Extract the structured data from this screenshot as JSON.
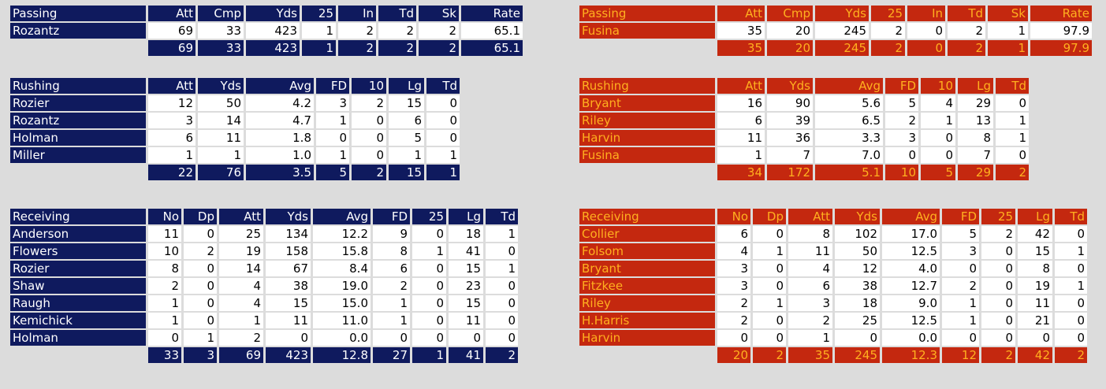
{
  "colors": {
    "team_a_bg": "#0f1a5e",
    "team_a_text": "#ffffff",
    "team_b_bg": "#c4280f",
    "team_b_text": "#ffb01f"
  },
  "team_a": {
    "passing": {
      "headers": [
        "Passing",
        "Att",
        "Cmp",
        "Yds",
        "25",
        "In",
        "Td",
        "Sk",
        "Rate"
      ],
      "rows": [
        [
          "Rozantz",
          "69",
          "33",
          "423",
          "1",
          "2",
          "2",
          "2",
          "65.1"
        ]
      ],
      "totals": [
        "69",
        "33",
        "423",
        "1",
        "2",
        "2",
        "2",
        "65.1"
      ]
    },
    "rushing": {
      "headers": [
        "Rushing",
        "Att",
        "Yds",
        "Avg",
        "FD",
        "10",
        "Lg",
        "Td"
      ],
      "rows": [
        [
          "Rozier",
          "12",
          "50",
          "4.2",
          "3",
          "2",
          "15",
          "0"
        ],
        [
          "Rozantz",
          "3",
          "14",
          "4.7",
          "1",
          "0",
          "6",
          "0"
        ],
        [
          "Holman",
          "6",
          "11",
          "1.8",
          "0",
          "0",
          "5",
          "0"
        ],
        [
          "Miller",
          "1",
          "1",
          "1.0",
          "1",
          "0",
          "1",
          "1"
        ]
      ],
      "totals": [
        "22",
        "76",
        "3.5",
        "5",
        "2",
        "15",
        "1"
      ]
    },
    "receiving": {
      "headers": [
        "Receiving",
        "No",
        "Dp",
        "Att",
        "Yds",
        "Avg",
        "FD",
        "25",
        "Lg",
        "Td"
      ],
      "rows": [
        [
          "Anderson",
          "11",
          "0",
          "25",
          "134",
          "12.2",
          "9",
          "0",
          "18",
          "1"
        ],
        [
          "Flowers",
          "10",
          "2",
          "19",
          "158",
          "15.8",
          "8",
          "1",
          "41",
          "0"
        ],
        [
          "Rozier",
          "8",
          "0",
          "14",
          "67",
          "8.4",
          "6",
          "0",
          "15",
          "1"
        ],
        [
          "Shaw",
          "2",
          "0",
          "4",
          "38",
          "19.0",
          "2",
          "0",
          "23",
          "0"
        ],
        [
          "Raugh",
          "1",
          "0",
          "4",
          "15",
          "15.0",
          "1",
          "0",
          "15",
          "0"
        ],
        [
          "Kemichick",
          "1",
          "0",
          "1",
          "11",
          "11.0",
          "1",
          "0",
          "11",
          "0"
        ],
        [
          "Holman",
          "0",
          "1",
          "2",
          "0",
          "0.0",
          "0",
          "0",
          "0",
          "0"
        ]
      ],
      "totals": [
        "33",
        "3",
        "69",
        "423",
        "12.8",
        "27",
        "1",
        "41",
        "2"
      ]
    }
  },
  "team_b": {
    "passing": {
      "headers": [
        "Passing",
        "Att",
        "Cmp",
        "Yds",
        "25",
        "In",
        "Td",
        "Sk",
        "Rate"
      ],
      "rows": [
        [
          "Fusina",
          "35",
          "20",
          "245",
          "2",
          "0",
          "2",
          "1",
          "97.9"
        ]
      ],
      "totals": [
        "35",
        "20",
        "245",
        "2",
        "0",
        "2",
        "1",
        "97.9"
      ]
    },
    "rushing": {
      "headers": [
        "Rushing",
        "Att",
        "Yds",
        "Avg",
        "FD",
        "10",
        "Lg",
        "Td"
      ],
      "rows": [
        [
          "Bryant",
          "16",
          "90",
          "5.6",
          "5",
          "4",
          "29",
          "0"
        ],
        [
          "Riley",
          "6",
          "39",
          "6.5",
          "2",
          "1",
          "13",
          "1"
        ],
        [
          "Harvin",
          "11",
          "36",
          "3.3",
          "3",
          "0",
          "8",
          "1"
        ],
        [
          "Fusina",
          "1",
          "7",
          "7.0",
          "0",
          "0",
          "7",
          "0"
        ]
      ],
      "totals": [
        "34",
        "172",
        "5.1",
        "10",
        "5",
        "29",
        "2"
      ]
    },
    "receiving": {
      "headers": [
        "Receiving",
        "No",
        "Dp",
        "Att",
        "Yds",
        "Avg",
        "FD",
        "25",
        "Lg",
        "Td"
      ],
      "rows": [
        [
          "Collier",
          "6",
          "0",
          "8",
          "102",
          "17.0",
          "5",
          "2",
          "42",
          "0"
        ],
        [
          "Folsom",
          "4",
          "1",
          "11",
          "50",
          "12.5",
          "3",
          "0",
          "15",
          "1"
        ],
        [
          "Bryant",
          "3",
          "0",
          "4",
          "12",
          "4.0",
          "0",
          "0",
          "8",
          "0"
        ],
        [
          "Fitzkee",
          "3",
          "0",
          "6",
          "38",
          "12.7",
          "2",
          "0",
          "19",
          "1"
        ],
        [
          "Riley",
          "2",
          "1",
          "3",
          "18",
          "9.0",
          "1",
          "0",
          "11",
          "0"
        ],
        [
          "H.Harris",
          "2",
          "0",
          "2",
          "25",
          "12.5",
          "1",
          "0",
          "21",
          "0"
        ],
        [
          "Harvin",
          "0",
          "0",
          "1",
          "0",
          "0.0",
          "0",
          "0",
          "0",
          "0"
        ]
      ],
      "totals": [
        "20",
        "2",
        "35",
        "245",
        "12.3",
        "12",
        "2",
        "42",
        "2"
      ]
    }
  }
}
